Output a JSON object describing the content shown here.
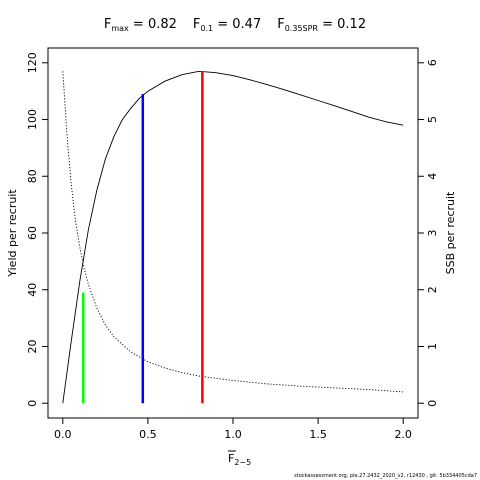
{
  "chart_data": {
    "type": "line",
    "title_parts": [
      {
        "main": "F",
        "sub": "max",
        "rest": " = 0.82"
      },
      {
        "main": "F",
        "sub": "0.1",
        "rest": " = 0.47"
      },
      {
        "main": "F",
        "sub": "0.35SPR",
        "rest": " = 0.12"
      }
    ],
    "xlabel_main": "F",
    "xlabel_sub": "2−5",
    "ylabel_left": "Yield per recruit",
    "ylabel_right": "SSB per recruit",
    "xlim": [
      0,
      2
    ],
    "ylim_left": [
      0,
      120
    ],
    "ylim_right": [
      0,
      6
    ],
    "x_ticks": [
      "0.0",
      "0.5",
      "1.0",
      "1.5",
      "2.0"
    ],
    "y_ticks_left": [
      "0",
      "20",
      "40",
      "60",
      "80",
      "100",
      "120"
    ],
    "y_ticks_right": [
      "0",
      "1",
      "2",
      "3",
      "4",
      "5",
      "6"
    ],
    "series": [
      {
        "style": "solid",
        "axis": "left",
        "x": [
          0,
          0.05,
          0.1,
          0.15,
          0.2,
          0.25,
          0.3,
          0.35,
          0.4,
          0.45,
          0.5,
          0.6,
          0.7,
          0.8,
          0.9,
          1.0,
          1.1,
          1.2,
          1.3,
          1.4,
          1.5,
          1.6,
          1.7,
          1.8,
          1.9,
          2.0
        ],
        "y": [
          0,
          22,
          43,
          61,
          75,
          86,
          94,
          100,
          104,
          107.5,
          110,
          113.5,
          115.8,
          117,
          116.5,
          115.5,
          114,
          112.3,
          110.5,
          108.6,
          106.7,
          104.8,
          102.8,
          100.8,
          99.2,
          98
        ]
      },
      {
        "style": "dotted",
        "axis": "right",
        "x": [
          0,
          0.025,
          0.05,
          0.075,
          0.1,
          0.125,
          0.15,
          0.2,
          0.25,
          0.3,
          0.4,
          0.5,
          0.6,
          0.7,
          0.8,
          1.0,
          1.2,
          1.4,
          1.6,
          1.8,
          2.0
        ],
        "y": [
          5.85,
          4.7,
          3.85,
          3.2,
          2.75,
          2.38,
          2.1,
          1.68,
          1.38,
          1.17,
          0.9,
          0.73,
          0.62,
          0.54,
          0.48,
          0.4,
          0.34,
          0.3,
          0.27,
          0.24,
          0.2
        ]
      }
    ],
    "reference_lines": [
      {
        "x": 0.82,
        "y_top": 117,
        "axis": "left",
        "color": "#ff0000"
      },
      {
        "x": 0.47,
        "y_top": 109,
        "axis": "left",
        "color": "#0000ff"
      },
      {
        "x": 0.12,
        "y_top": 39,
        "axis": "left",
        "color": "#00ff00"
      }
    ],
    "grid": false,
    "footer": "stockassessment.org, ple.27.2432_2020_v2, r12430 , git: 5b334405cda7"
  }
}
